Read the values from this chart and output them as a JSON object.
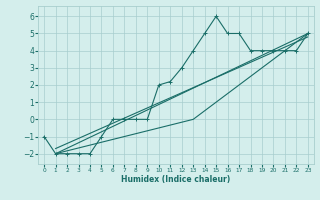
{
  "x_main": [
    0,
    1,
    2,
    3,
    4,
    5,
    6,
    7,
    8,
    9,
    10,
    11,
    12,
    13,
    14,
    15,
    16,
    17,
    18,
    19,
    20,
    21,
    22,
    23
  ],
  "y_main": [
    -1,
    -2,
    -2,
    -2,
    -2,
    -1,
    0,
    0,
    0,
    0,
    2,
    2.2,
    3,
    4,
    5,
    6,
    5,
    5,
    4,
    4,
    4,
    4,
    4,
    5
  ],
  "line1_x": [
    1,
    23
  ],
  "line1_y": [
    -2,
    5
  ],
  "line2_x": [
    1,
    13,
    23
  ],
  "line2_y": [
    -2,
    0,
    5
  ],
  "line3_x": [
    1,
    23
  ],
  "line3_y": [
    -1.7,
    4.8
  ],
  "background_color": "#d4eeec",
  "grid_color": "#a8cece",
  "line_color": "#1a6e68",
  "xlabel": "Humidex (Indice chaleur)",
  "xlim": [
    -0.5,
    23.5
  ],
  "ylim": [
    -2.6,
    6.6
  ],
  "xticks": [
    0,
    1,
    2,
    3,
    4,
    5,
    6,
    7,
    8,
    9,
    10,
    11,
    12,
    13,
    14,
    15,
    16,
    17,
    18,
    19,
    20,
    21,
    22,
    23
  ],
  "yticks": [
    -2,
    -1,
    0,
    1,
    2,
    3,
    4,
    5,
    6
  ]
}
